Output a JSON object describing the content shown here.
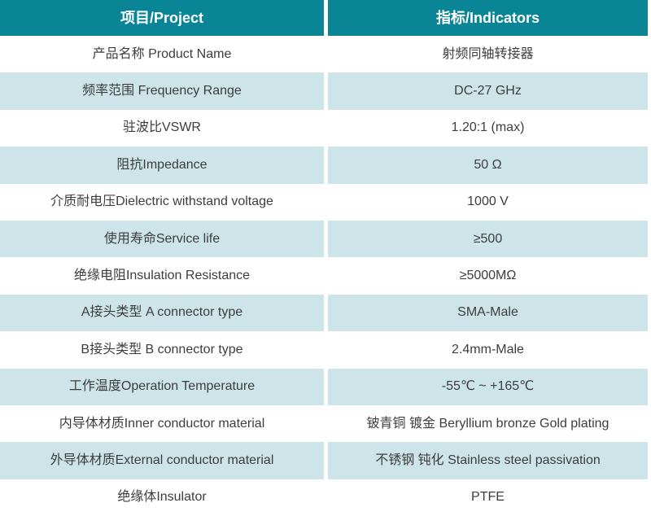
{
  "table": {
    "colors": {
      "header_background": "#0a8595",
      "header_text": "#ffffff",
      "alt_row_background": "#cde5e9",
      "plain_row_background": "#ffffff",
      "body_text": "#3d3d3d"
    },
    "header": {
      "project": "项目/Project",
      "indicators": "指标/Indicators"
    },
    "rows": [
      {
        "project": "产品名称 Product Name",
        "indicator": "射频同轴转接器"
      },
      {
        "project": "频率范围 Frequency Range",
        "indicator": "DC-27 GHz"
      },
      {
        "project": "驻波比VSWR",
        "indicator": "1.20:1 (max)"
      },
      {
        "project": "阻抗Impedance",
        "indicator": "50 Ω"
      },
      {
        "project": "介质耐电压Dielectric withstand voltage",
        "indicator": "1000 V"
      },
      {
        "project": "使用寿命Service life",
        "indicator": "≥500"
      },
      {
        "project": "绝缘电阻Insulation Resistance",
        "indicator": "≥5000MΩ"
      },
      {
        "project": "A接头类型 A connector type",
        "indicator": "SMA-Male"
      },
      {
        "project": "B接头类型 B connector type",
        "indicator": "2.4mm-Male"
      },
      {
        "project": "工作温度Operation Temperature",
        "indicator": "-55℃ ~ +165℃"
      },
      {
        "project": "内导体材质Inner conductor material",
        "indicator": "铍青铜 镀金 Beryllium bronze Gold plating"
      },
      {
        "project": "外导体材质External conductor material",
        "indicator": "不锈钢 钝化 Stainless steel passivation"
      },
      {
        "project": "绝缘体Insulator",
        "indicator": "PTFE"
      }
    ]
  }
}
